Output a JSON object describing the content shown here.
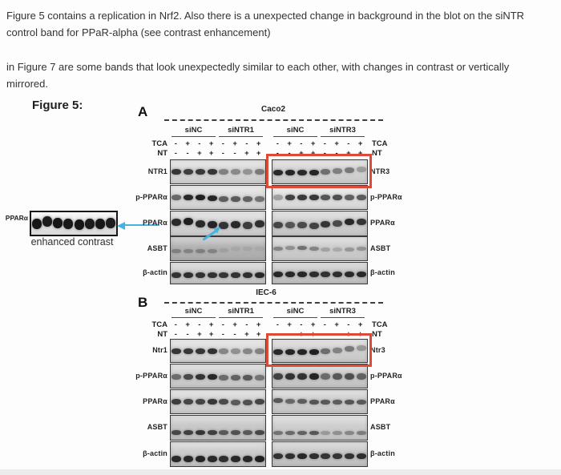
{
  "comment": {
    "paragraph1": "Figure 5 contains a replication in Nrf2. Also there is a unexpected change in background in the blot on the siNTR control band for PPaR-alpha (see contrast enhancement)",
    "paragraph2": "in Figure 7 are some bands that look unexpectedly similar to each other, with changes in contrast or vertically mirrored."
  },
  "figure": {
    "label": "Figure 5:",
    "colors": {
      "highlight_red": "#dd4a38",
      "arrow_blue": "#44b3e3"
    },
    "inset": {
      "label": "PPARα",
      "caption": "enhanced contrast",
      "bands": [
        0.95,
        0.93,
        0.95,
        0.94,
        0.95,
        0.93,
        0.95,
        0.92
      ],
      "band_dy": [
        2,
        -1,
        1,
        2,
        3,
        2,
        2,
        1
      ],
      "arrow_icon": "left-arrow-icon"
    },
    "panels": [
      {
        "id": "A",
        "letter": "A",
        "title": "Caco2",
        "groups": [
          "siNC",
          "siNTR1",
          "siNC",
          "siNTR3"
        ],
        "treatments": [
          {
            "label": "TCA",
            "left": [
              "-",
              "+",
              "-",
              "+",
              "-",
              "+",
              "-",
              "+"
            ],
            "right": [
              "-",
              "+",
              "-",
              "+",
              "-",
              "+",
              "-",
              "+"
            ]
          },
          {
            "label": "NT",
            "left": [
              "-",
              "-",
              "+",
              "+",
              "-",
              "-",
              "+",
              "+"
            ],
            "right": [
              "-",
              "-",
              "+",
              "+",
              "-",
              "-",
              "+",
              "+"
            ]
          }
        ],
        "annotations": [
          "band-pointer-arrow-icon"
        ],
        "rows": [
          {
            "left_label": "NTR1",
            "right_label": "NTR3",
            "highlight_right": true,
            "left": {
              "bands": [
                0.8,
                0.75,
                0.78,
                0.8,
                0.42,
                0.38,
                0.33,
                0.45
              ],
              "bg": "#d8d8d8",
              "band_h": 7,
              "dy": [
                0,
                0,
                0,
                0,
                0,
                0,
                0,
                0
              ]
            },
            "right": {
              "bands": [
                0.85,
                0.88,
                0.85,
                0.88,
                0.5,
                0.42,
                0.45,
                0.28
              ],
              "bg": "#d4d4d4",
              "band_h": 7,
              "dy": [
                1,
                1,
                1,
                1,
                0,
                -1,
                -2,
                -3
              ]
            }
          },
          {
            "left_label": "p-PPARα",
            "right_label": "p-PPARα",
            "highlight_right": false,
            "left": {
              "bands": [
                0.55,
                0.85,
                0.9,
                0.88,
                0.6,
                0.62,
                0.58,
                0.5
              ],
              "bg": "#dcdcdc",
              "band_h": 7,
              "dy": [
                0,
                0,
                0,
                1,
                2,
                2,
                2,
                2
              ]
            },
            "right": {
              "bands": [
                0.3,
                0.75,
                0.78,
                0.8,
                0.65,
                0.68,
                0.6,
                0.62
              ],
              "bg": "#e2e2e2",
              "band_h": 7,
              "dy": [
                0,
                0,
                0,
                0,
                0,
                0,
                0,
                0
              ]
            }
          },
          {
            "left_label": "PPARα",
            "right_label": "PPARα",
            "highlight_right": false,
            "arrow_in_left": true,
            "left": {
              "bands": [
                0.85,
                0.9,
                0.85,
                0.88,
                0.8,
                0.85,
                0.75,
                0.82
              ],
              "bg": "#d5d5d5",
              "band_h": 9,
              "dy": [
                -2,
                -3,
                0,
                1,
                2,
                1,
                2,
                0
              ]
            },
            "right": {
              "bands": [
                0.7,
                0.62,
                0.68,
                0.72,
                0.78,
                0.68,
                0.85,
                0.8
              ],
              "bg": "#d0d0d0",
              "band_h": 8,
              "dy": [
                2,
                2,
                2,
                3,
                1,
                0,
                -2,
                -2
              ]
            }
          },
          {
            "left_label": "ASBT",
            "right_label": "ASBT",
            "highlight_right": false,
            "left": {
              "bands": [
                0.3,
                0.28,
                0.3,
                0.28,
                0.1,
                0.07,
                0.08,
                0.06
              ],
              "bg": "#b4b4b4",
              "band_h": 5,
              "dy": [
                3,
                3,
                3,
                3,
                2,
                0,
                0,
                0
              ]
            },
            "right": {
              "bands": [
                0.38,
                0.32,
                0.48,
                0.38,
                0.22,
                0.18,
                0.28,
                0.3
              ],
              "bg": "#cfcfcf",
              "band_h": 5,
              "dy": [
                0,
                -1,
                -1,
                0,
                1,
                1,
                1,
                0
              ]
            }
          },
          {
            "left_label": "β-actin",
            "right_label": "β-actin",
            "highlight_right": false,
            "left": {
              "bands": [
                0.8,
                0.82,
                0.8,
                0.8,
                0.78,
                0.8,
                0.82,
                0.85
              ],
              "bg": "#cdcdcd",
              "band_h": 7,
              "dy": [
                2,
                2,
                2,
                2,
                2,
                2,
                2,
                2
              ]
            },
            "right": {
              "bands": [
                0.85,
                0.85,
                0.85,
                0.82,
                0.8,
                0.82,
                0.85,
                0.85
              ],
              "bg": "#c8c8c8",
              "band_h": 7,
              "dy": [
                1,
                1,
                1,
                1,
                1,
                1,
                1,
                1
              ]
            }
          }
        ]
      },
      {
        "id": "B",
        "letter": "B",
        "title": "IEC-6",
        "groups": [
          "siNC",
          "siNTR1",
          "siNC",
          "siNTR3"
        ],
        "treatments": [
          {
            "label": "TCA",
            "left": [
              "-",
              "+",
              "-",
              "+",
              "-",
              "+",
              "-",
              "+"
            ],
            "right": [
              "-",
              "+",
              "-",
              "+",
              "-",
              "+",
              "-",
              "+"
            ]
          },
          {
            "label": "NT",
            "left": [
              "-",
              "-",
              "+",
              "+",
              "-",
              "-",
              "+",
              "+"
            ],
            "right": [
              "-",
              "-",
              "+",
              "+",
              "-",
              "-",
              "+",
              "+"
            ]
          }
        ],
        "annotations": [],
        "rows": [
          {
            "left_label": "Ntr1",
            "right_label": "Ntr3",
            "highlight_right": true,
            "left": {
              "bands": [
                0.8,
                0.78,
                0.8,
                0.82,
                0.4,
                0.35,
                0.4,
                0.42
              ],
              "bg": "#dadada",
              "band_h": 7,
              "dy": [
                0,
                0,
                0,
                0,
                0,
                0,
                0,
                0
              ]
            },
            "right": {
              "bands": [
                0.85,
                0.88,
                0.88,
                0.9,
                0.5,
                0.4,
                0.45,
                0.3
              ],
              "bg": "#d2d2d2",
              "band_h": 7,
              "dy": [
                1,
                1,
                1,
                1,
                0,
                -1,
                -3,
                -4
              ]
            }
          },
          {
            "left_label": "p-PPARα",
            "right_label": "p-PPARα",
            "highlight_right": false,
            "left": {
              "bands": [
                0.5,
                0.68,
                0.8,
                0.85,
                0.5,
                0.55,
                0.6,
                0.45
              ],
              "bg": "#cfcfcf",
              "band_h": 7,
              "dy": [
                1,
                1,
                1,
                1,
                2,
                2,
                2,
                2
              ]
            },
            "right": {
              "bands": [
                0.72,
                0.8,
                0.8,
                0.88,
                0.5,
                0.6,
                0.65,
                0.55
              ],
              "bg": "#cccccc",
              "band_h": 8,
              "dy": [
                0,
                0,
                0,
                0,
                0,
                0,
                0,
                0
              ]
            }
          },
          {
            "left_label": "PPARα",
            "right_label": "PPARα",
            "highlight_right": false,
            "left": {
              "bands": [
                0.75,
                0.7,
                0.72,
                0.78,
                0.68,
                0.6,
                0.65,
                0.7
              ],
              "bg": "#d4d4d4",
              "band_h": 7,
              "dy": [
                0,
                0,
                0,
                0,
                0,
                1,
                1,
                0
              ]
            },
            "right": {
              "bands": [
                0.6,
                0.52,
                0.58,
                0.62,
                0.6,
                0.58,
                0.62,
                0.6
              ],
              "bg": "#cfcfcf",
              "band_h": 6,
              "dy": [
                -2,
                -1,
                -1,
                0,
                0,
                0,
                0,
                0
              ]
            }
          },
          {
            "left_label": "ASBT",
            "right_label": "ASBT",
            "highlight_right": false,
            "left": {
              "bands": [
                0.68,
                0.72,
                0.78,
                0.72,
                0.58,
                0.62,
                0.58,
                0.68
              ],
              "bg": "#c9c9c9",
              "band_h": 6,
              "dy": [
                6,
                6,
                6,
                6,
                6,
                6,
                6,
                6
              ]
            },
            "right": {
              "bands": [
                0.45,
                0.5,
                0.55,
                0.6,
                0.25,
                0.3,
                0.35,
                0.4
              ],
              "bg": "#cfcfcf",
              "band_h": 5,
              "dy": [
                6,
                6,
                6,
                6,
                6,
                6,
                6,
                6
              ]
            }
          },
          {
            "left_label": "β-actin",
            "right_label": "β-actin",
            "highlight_right": false,
            "left": {
              "bands": [
                0.85,
                0.85,
                0.88,
                0.85,
                0.82,
                0.85,
                0.85,
                0.9
              ],
              "bg": "#cccccc",
              "band_h": 8,
              "dy": [
                6,
                6,
                6,
                6,
                6,
                6,
                6,
                6
              ]
            },
            "right": {
              "bands": [
                0.8,
                0.82,
                0.85,
                0.82,
                0.78,
                0.78,
                0.8,
                0.82
              ],
              "bg": "#c8c8c8",
              "band_h": 7,
              "dy": [
                2,
                2,
                2,
                2,
                2,
                2,
                2,
                2
              ]
            }
          }
        ]
      }
    ]
  }
}
